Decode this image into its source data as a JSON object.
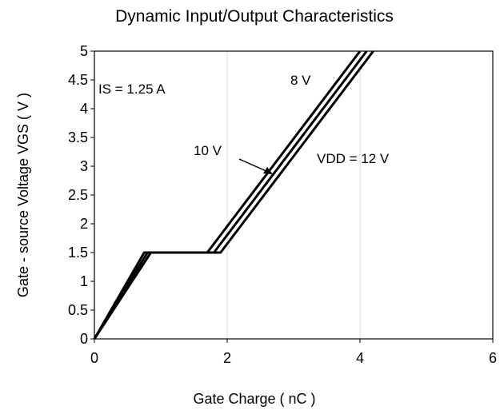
{
  "chart_data": {
    "type": "line",
    "title": "Dynamic Input/Output Characteristics",
    "xlabel": "Gate Charge  ( nC )",
    "ylabel": "Gate - source Voltage VGS ( V )",
    "xlim": [
      0,
      6
    ],
    "ylim": [
      0,
      5
    ],
    "x_ticks": [
      "0",
      "2",
      "4",
      "6"
    ],
    "y_ticks": [
      "0",
      "0.5",
      "1",
      "1.5",
      "2",
      "2.5",
      "3",
      "3.5",
      "4",
      "4.5",
      "5"
    ],
    "grid": "vertical",
    "series": [
      {
        "name": "8 V",
        "x": [
          0,
          0.75,
          1.7,
          4.0
        ],
        "y": [
          0,
          1.5,
          1.5,
          5
        ]
      },
      {
        "name": "10 V",
        "x": [
          0,
          0.8,
          1.8,
          4.1
        ],
        "y": [
          0,
          1.5,
          1.5,
          5
        ]
      },
      {
        "name": "VDD = 12 V",
        "x": [
          0,
          0.85,
          1.9,
          4.2
        ],
        "y": [
          0,
          1.5,
          1.5,
          5
        ]
      }
    ],
    "annotations": [
      {
        "text": "IS = 1.25 A"
      },
      {
        "text": "8 V"
      },
      {
        "text": "10 V"
      },
      {
        "text": "VDD = 12 V"
      }
    ]
  }
}
